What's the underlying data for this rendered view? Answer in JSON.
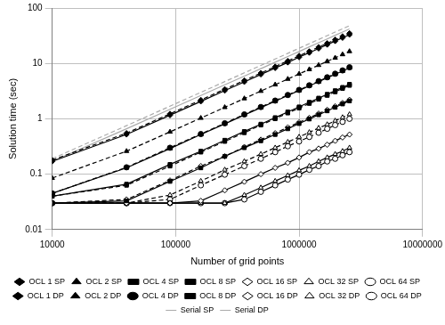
{
  "chart_data": {
    "type": "line",
    "x_label": "Number of grid points",
    "y_label": "Solution time (sec)",
    "log": true,
    "grid": true,
    "legend": "bottom",
    "xlim": [
      10000,
      10000000
    ],
    "xticks": [
      10000,
      100000,
      1000000,
      10000000
    ],
    "ylim": [
      0.01,
      100
    ],
    "yticks": [
      0.01,
      0.1,
      1,
      10,
      100
    ],
    "x": [
      10000,
      40000,
      90000,
      160000,
      250000,
      360000,
      490000,
      640000,
      810000,
      1000000,
      1210000,
      1440000,
      1690000,
      1960000,
      2250000,
      2560000
    ],
    "series": [
      {
        "name": "OCL 1 SP",
        "color": "#000000",
        "marker": "diamond",
        "line_style": "solid",
        "values": [
          0.17,
          0.52,
          1.16,
          2.06,
          3.22,
          4.64,
          6.32,
          8.25,
          10.4,
          12.9,
          15.6,
          18.6,
          21.8,
          25.3,
          29,
          33
        ]
      },
      {
        "name": "OCL 2 SP",
        "color": "#000000",
        "marker": "triangle",
        "line_style": "solid",
        "values": [
          0.045,
          0.13,
          0.29,
          0.52,
          0.81,
          1.17,
          1.59,
          2.07,
          2.63,
          3.24,
          3.92,
          4.67,
          5.48,
          6.35,
          7.29,
          8.3
        ]
      },
      {
        "name": "OCL 4 SP",
        "color": "#000000",
        "marker": "square",
        "line_style": "solid",
        "values": [
          0.04,
          0.066,
          0.15,
          0.26,
          0.41,
          0.59,
          0.8,
          1.05,
          1.33,
          1.64,
          1.99,
          2.36,
          2.77,
          3.22,
          3.69,
          4.2
        ]
      },
      {
        "name": "OCL 8 SP",
        "color": "#000000",
        "marker": "square",
        "line_style": "solid",
        "values": [
          0.03,
          0.033,
          0.074,
          0.13,
          0.21,
          0.3,
          0.4,
          0.52,
          0.66,
          0.82,
          0.99,
          1.18,
          1.39,
          1.61,
          1.85,
          2.1
        ]
      },
      {
        "name": "OCL 16 SP",
        "color": "#000000",
        "marker": "open_diamond",
        "line_style": "solid",
        "values": [
          0.03,
          0.03,
          0.03,
          0.033,
          0.051,
          0.073,
          0.1,
          0.13,
          0.16,
          0.2,
          0.25,
          0.29,
          0.34,
          0.4,
          0.46,
          0.52
        ]
      },
      {
        "name": "OCL 32 SP",
        "color": "#000000",
        "marker": "open_triangle",
        "line_style": "solid",
        "values": [
          0.03,
          0.03,
          0.03,
          0.03,
          0.03,
          0.042,
          0.057,
          0.075,
          0.095,
          0.117,
          0.14,
          0.17,
          0.2,
          0.23,
          0.26,
          0.3
        ]
      },
      {
        "name": "OCL 64 SP",
        "color": "#000000",
        "marker": "open_circle",
        "line_style": "solid",
        "values": [
          0.03,
          0.03,
          0.03,
          0.03,
          0.03,
          0.035,
          0.048,
          0.063,
          0.08,
          0.098,
          0.12,
          0.14,
          0.17,
          0.19,
          0.22,
          0.25
        ]
      },
      {
        "name": "OCL 1 DP",
        "color": "#000000",
        "marker": "diamond",
        "line_style": "dashed",
        "values": [
          0.18,
          0.55,
          1.23,
          2.19,
          3.42,
          4.92,
          6.7,
          8.75,
          11.1,
          13.7,
          16.5,
          19.7,
          23.1,
          26.8,
          30.8,
          35
        ]
      },
      {
        "name": "OCL 2 DP",
        "color": "#000000",
        "marker": "triangle",
        "line_style": "dashed",
        "values": [
          0.085,
          0.26,
          0.58,
          1.03,
          1.61,
          2.32,
          3.16,
          4.13,
          5.22,
          6.45,
          7.8,
          9.28,
          10.9,
          12.6,
          14.5,
          16.5
        ]
      },
      {
        "name": "OCL 4 DP",
        "color": "#000000",
        "marker": "circle",
        "line_style": "dashed",
        "values": [
          0.045,
          0.133,
          0.3,
          0.53,
          0.83,
          1.2,
          1.63,
          2.13,
          2.69,
          3.32,
          4.02,
          4.78,
          5.61,
          6.51,
          7.47,
          8.5
        ]
      },
      {
        "name": "OCL 8 DP",
        "color": "#000000",
        "marker": "square",
        "line_style": "dashed",
        "values": [
          0.04,
          0.063,
          0.14,
          0.25,
          0.39,
          0.56,
          0.77,
          1.0,
          1.27,
          1.56,
          1.89,
          2.25,
          2.64,
          3.06,
          3.52,
          4.0
        ]
      },
      {
        "name": "OCL 16 DP",
        "color": "#000000",
        "marker": "open_diamond",
        "line_style": "dashed",
        "values": [
          0.03,
          0.035,
          0.077,
          0.14,
          0.21,
          0.31,
          0.42,
          0.55,
          0.7,
          0.86,
          1.04,
          1.24,
          1.45,
          1.68,
          1.93,
          2.2
        ]
      },
      {
        "name": "OCL 32 DP",
        "color": "#000000",
        "marker": "open_triangle",
        "line_style": "dashed",
        "values": [
          0.03,
          0.03,
          0.042,
          0.075,
          0.12,
          0.17,
          0.23,
          0.3,
          0.38,
          0.47,
          0.57,
          0.68,
          0.79,
          0.92,
          1.06,
          1.2
        ]
      },
      {
        "name": "OCL 64 DP",
        "color": "#000000",
        "marker": "open_circle",
        "line_style": "dashed",
        "values": [
          0.03,
          0.03,
          0.035,
          0.063,
          0.098,
          0.14,
          0.19,
          0.25,
          0.32,
          0.39,
          0.47,
          0.56,
          0.66,
          0.77,
          0.88,
          1.0
        ]
      },
      {
        "name": "Serial SP",
        "color": "#aaaaaa",
        "marker": "none",
        "line_style": "solid",
        "values": [
          0.17,
          0.66,
          1.48,
          2.63,
          4.1,
          5.9,
          8.04,
          10.5,
          13.3,
          16.4,
          19.9,
          23.6,
          27.7,
          32.2,
          36.9,
          42
        ]
      },
      {
        "name": "Serial DP",
        "color": "#aaaaaa",
        "marker": "none",
        "line_style": "dashed",
        "values": [
          0.19,
          0.75,
          1.69,
          3.0,
          4.69,
          6.75,
          9.19,
          12,
          15.2,
          18.8,
          22.7,
          27,
          31.7,
          36.8,
          42.2,
          48
        ]
      }
    ]
  }
}
